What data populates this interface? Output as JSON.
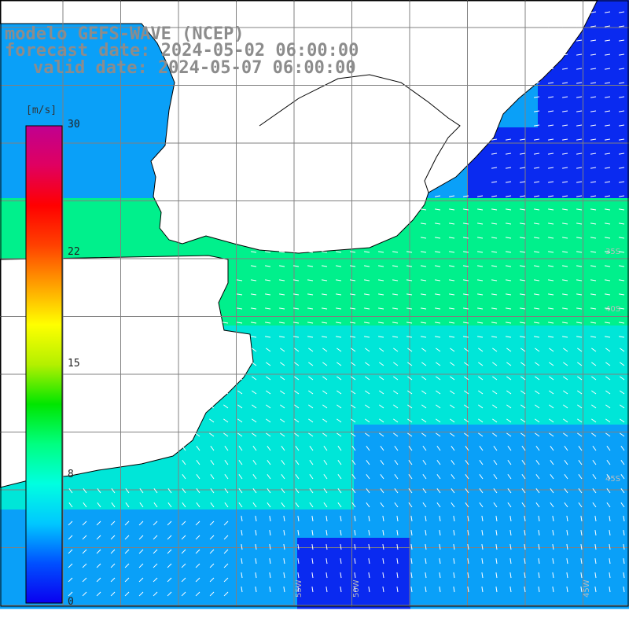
{
  "header": {
    "model_line": "modelo GEFS-WAVE (NCEP)",
    "forecast_line": "forecast date: 2024-05-02 06:00:00",
    "valid_line": "valid date: 2024-05-07 06:00:00"
  },
  "colorbar": {
    "units": "[m/s]",
    "min": 0,
    "max": 30,
    "ticks": [
      {
        "value": 30,
        "label": "30"
      },
      {
        "value": 22,
        "label": "22"
      },
      {
        "value": 15,
        "label": "15"
      },
      {
        "value": 8,
        "label": "8"
      },
      {
        "value": 0,
        "label": "0"
      }
    ],
    "stops": [
      "#0a00f0",
      "#0050ff",
      "#00c8ff",
      "#00ffe0",
      "#00ff80",
      "#00e600",
      "#b4f000",
      "#ffff00",
      "#ffa000",
      "#ff4000",
      "#ff0000",
      "#e00060",
      "#c00090"
    ]
  },
  "grid": {
    "lon_labels": [
      "55W",
      "50W",
      "45W"
    ],
    "lat_labels": [
      "35S",
      "40S",
      "45S"
    ]
  },
  "colors": {
    "land": "#ffffff",
    "coast": "#000000",
    "gridline": "#808080",
    "arrow": "#ffffff",
    "calm": "#0a2af0",
    "moderate": "#0aa0f8",
    "fresh": "#00e6d8",
    "strong": "#00f08c"
  }
}
